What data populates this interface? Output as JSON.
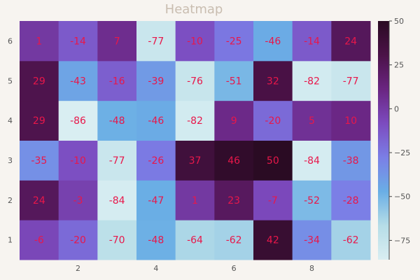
{
  "chart_data": {
    "type": "heatmap",
    "title": "Heatmap",
    "x_ticks": [
      "2",
      "4",
      "6",
      "8"
    ],
    "x_tick_values": [
      2,
      4,
      6,
      8
    ],
    "y_ticks": [
      "1",
      "2",
      "3",
      "4",
      "5",
      "6"
    ],
    "y_tick_values": [
      1,
      2,
      3,
      4,
      5,
      6
    ],
    "x": [
      1,
      2,
      3,
      4,
      5,
      6,
      7,
      8,
      9
    ],
    "y": [
      1,
      2,
      3,
      4,
      5,
      6
    ],
    "rows": [
      [
        -6,
        -20,
        -70,
        -48,
        -64,
        -62,
        42,
        -34,
        -62
      ],
      [
        24,
        -3,
        -84,
        -47,
        1,
        23,
        -7,
        -52,
        -28
      ],
      [
        -35,
        -10,
        -77,
        -26,
        37,
        46,
        50,
        -84,
        -38
      ],
      [
        29,
        -86,
        -48,
        -46,
        -82,
        9,
        -20,
        5,
        10
      ],
      [
        29,
        -43,
        -16,
        -39,
        -76,
        -51,
        32,
        -82,
        -77
      ],
      [
        1,
        -14,
        7,
        -77,
        -10,
        -25,
        -46,
        -14,
        24
      ]
    ],
    "colorbar": {
      "range": [
        -86,
        50
      ],
      "ticks": [
        -75,
        -50,
        -25,
        0,
        25,
        50
      ],
      "tick_labels": [
        "−75",
        "−50",
        "−25",
        "0",
        "25",
        "50"
      ]
    },
    "colors": {
      "background": "#f7f4f0",
      "title": "#c9bdb0",
      "cell_label": "#e8174a",
      "tick_label": "#555555",
      "colormap": [
        "#d9eef2",
        "#b6dde7",
        "#6aaee5",
        "#7b7ee6",
        "#7c4bbf",
        "#6a2581",
        "#4b1248",
        "#2a0b23"
      ]
    }
  }
}
